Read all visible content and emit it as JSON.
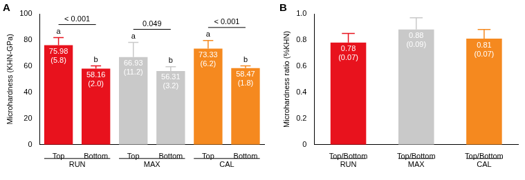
{
  "chart_data": [
    {
      "type": "bar",
      "panel": "A",
      "ylabel": "Microhardness (KHN-GPa)",
      "categories": [
        "Top",
        "Bottom",
        "Top",
        "Bottom",
        "Top",
        "Bottom"
      ],
      "values": [
        75.98,
        58.16,
        66.93,
        56.31,
        73.33,
        58.47
      ],
      "errors": [
        5.8,
        2.0,
        11.2,
        3.2,
        6.2,
        1.8
      ],
      "error_labels": [
        "(5.8)",
        "(2.0)",
        "(11.2)",
        "(3.2)",
        "(6.2)",
        "(1.8)"
      ],
      "letters": [
        "a",
        "b",
        "a",
        "b",
        "a",
        "b"
      ],
      "comparisons": [
        {
          "between": [
            0,
            1
          ],
          "label": "< 0.001"
        },
        {
          "between": [
            2,
            3
          ],
          "label": "0.049"
        },
        {
          "between": [
            4,
            5
          ],
          "label": "< 0.001"
        }
      ],
      "groups": [
        {
          "label": "RUN",
          "count": 2
        },
        {
          "label": "MAX",
          "count": 2
        },
        {
          "label": "CAL",
          "count": 2
        }
      ],
      "colors": [
        "#e8121d",
        "#e8121d",
        "#c9c9c9",
        "#c9c9c9",
        "#f5891f",
        "#f5891f"
      ],
      "ylim": [
        0,
        100
      ],
      "yticks": [
        0,
        20,
        40,
        60,
        80,
        100
      ],
      "grid": false,
      "data_labels": true
    },
    {
      "type": "bar",
      "panel": "B",
      "ylabel": "Microhardness ratio (%KHN)",
      "categories": [
        "Top/Bottom",
        "Top/Bottom",
        "Top/Bottom"
      ],
      "values": [
        0.78,
        0.88,
        0.81
      ],
      "errors": [
        0.07,
        0.09,
        0.07
      ],
      "error_labels": [
        "(0.07)",
        "(0.09)",
        "(0.07)"
      ],
      "groups": [
        {
          "label": "RUN",
          "count": 1
        },
        {
          "label": "MAX",
          "count": 1
        },
        {
          "label": "CAL",
          "count": 1
        }
      ],
      "colors": [
        "#e8121d",
        "#c9c9c9",
        "#f5891f"
      ],
      "ylim": [
        0,
        1.0
      ],
      "yticks": [
        0,
        0.2,
        0.4,
        0.6,
        0.8,
        {
          "value": 1.0,
          "label": "1.0"
        }
      ],
      "grid": false,
      "data_labels": true
    }
  ]
}
